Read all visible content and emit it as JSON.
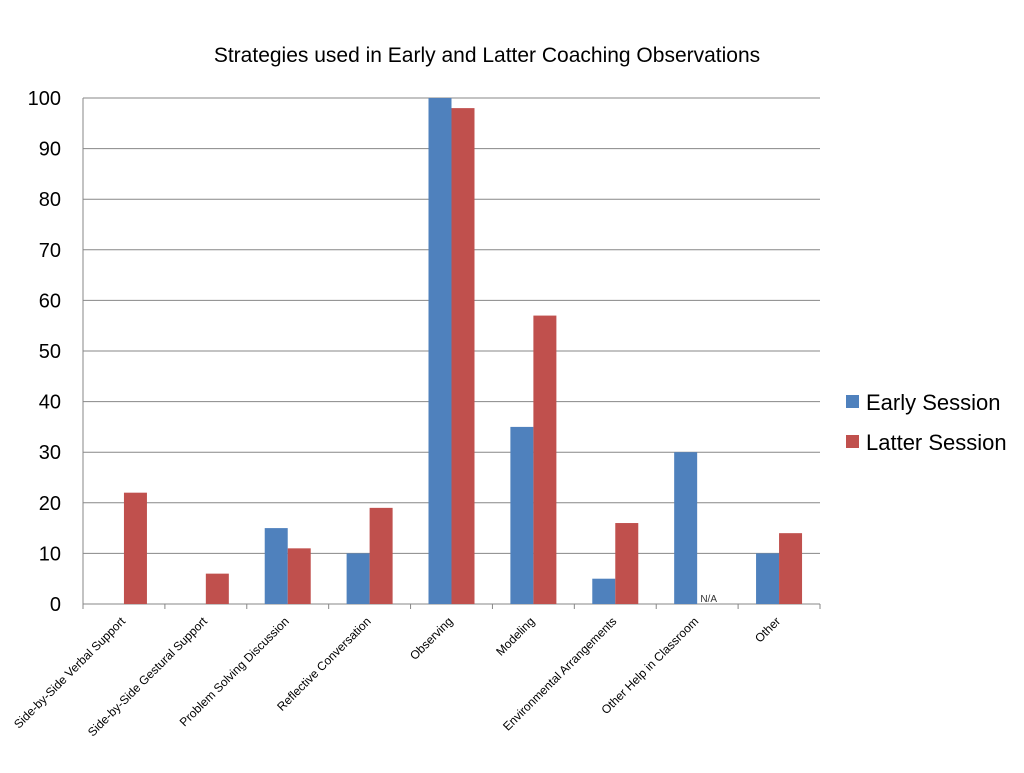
{
  "chart_data": {
    "type": "bar",
    "title": "Strategies used in Early and Latter Coaching Observations",
    "xlabel": "",
    "ylabel": "",
    "ylim": [
      0,
      100
    ],
    "yticks": [
      0,
      10,
      20,
      30,
      40,
      50,
      60,
      70,
      80,
      90,
      100
    ],
    "grid": true,
    "legend_position": "right",
    "categories": [
      "Side-by-Side Verbal Support",
      "Side-by-Side Gestural Support",
      "Problem Solving Discussion",
      "Reflective Conversation",
      "Observing",
      "Modeling",
      "Environmental Arrangements",
      "Other Help in Classroom",
      "Other"
    ],
    "series": [
      {
        "name": "Early Session",
        "color": "#4F81BD",
        "values": [
          0,
          0,
          15,
          10,
          100,
          35,
          5,
          30,
          10
        ]
      },
      {
        "name": "Latter Session",
        "color": "#C0504D",
        "values": [
          22,
          6,
          11,
          19,
          98,
          57,
          16,
          null,
          14
        ]
      }
    ],
    "annotations": [
      {
        "text": "N/A",
        "category_index": 7,
        "series_index": 1
      }
    ]
  }
}
